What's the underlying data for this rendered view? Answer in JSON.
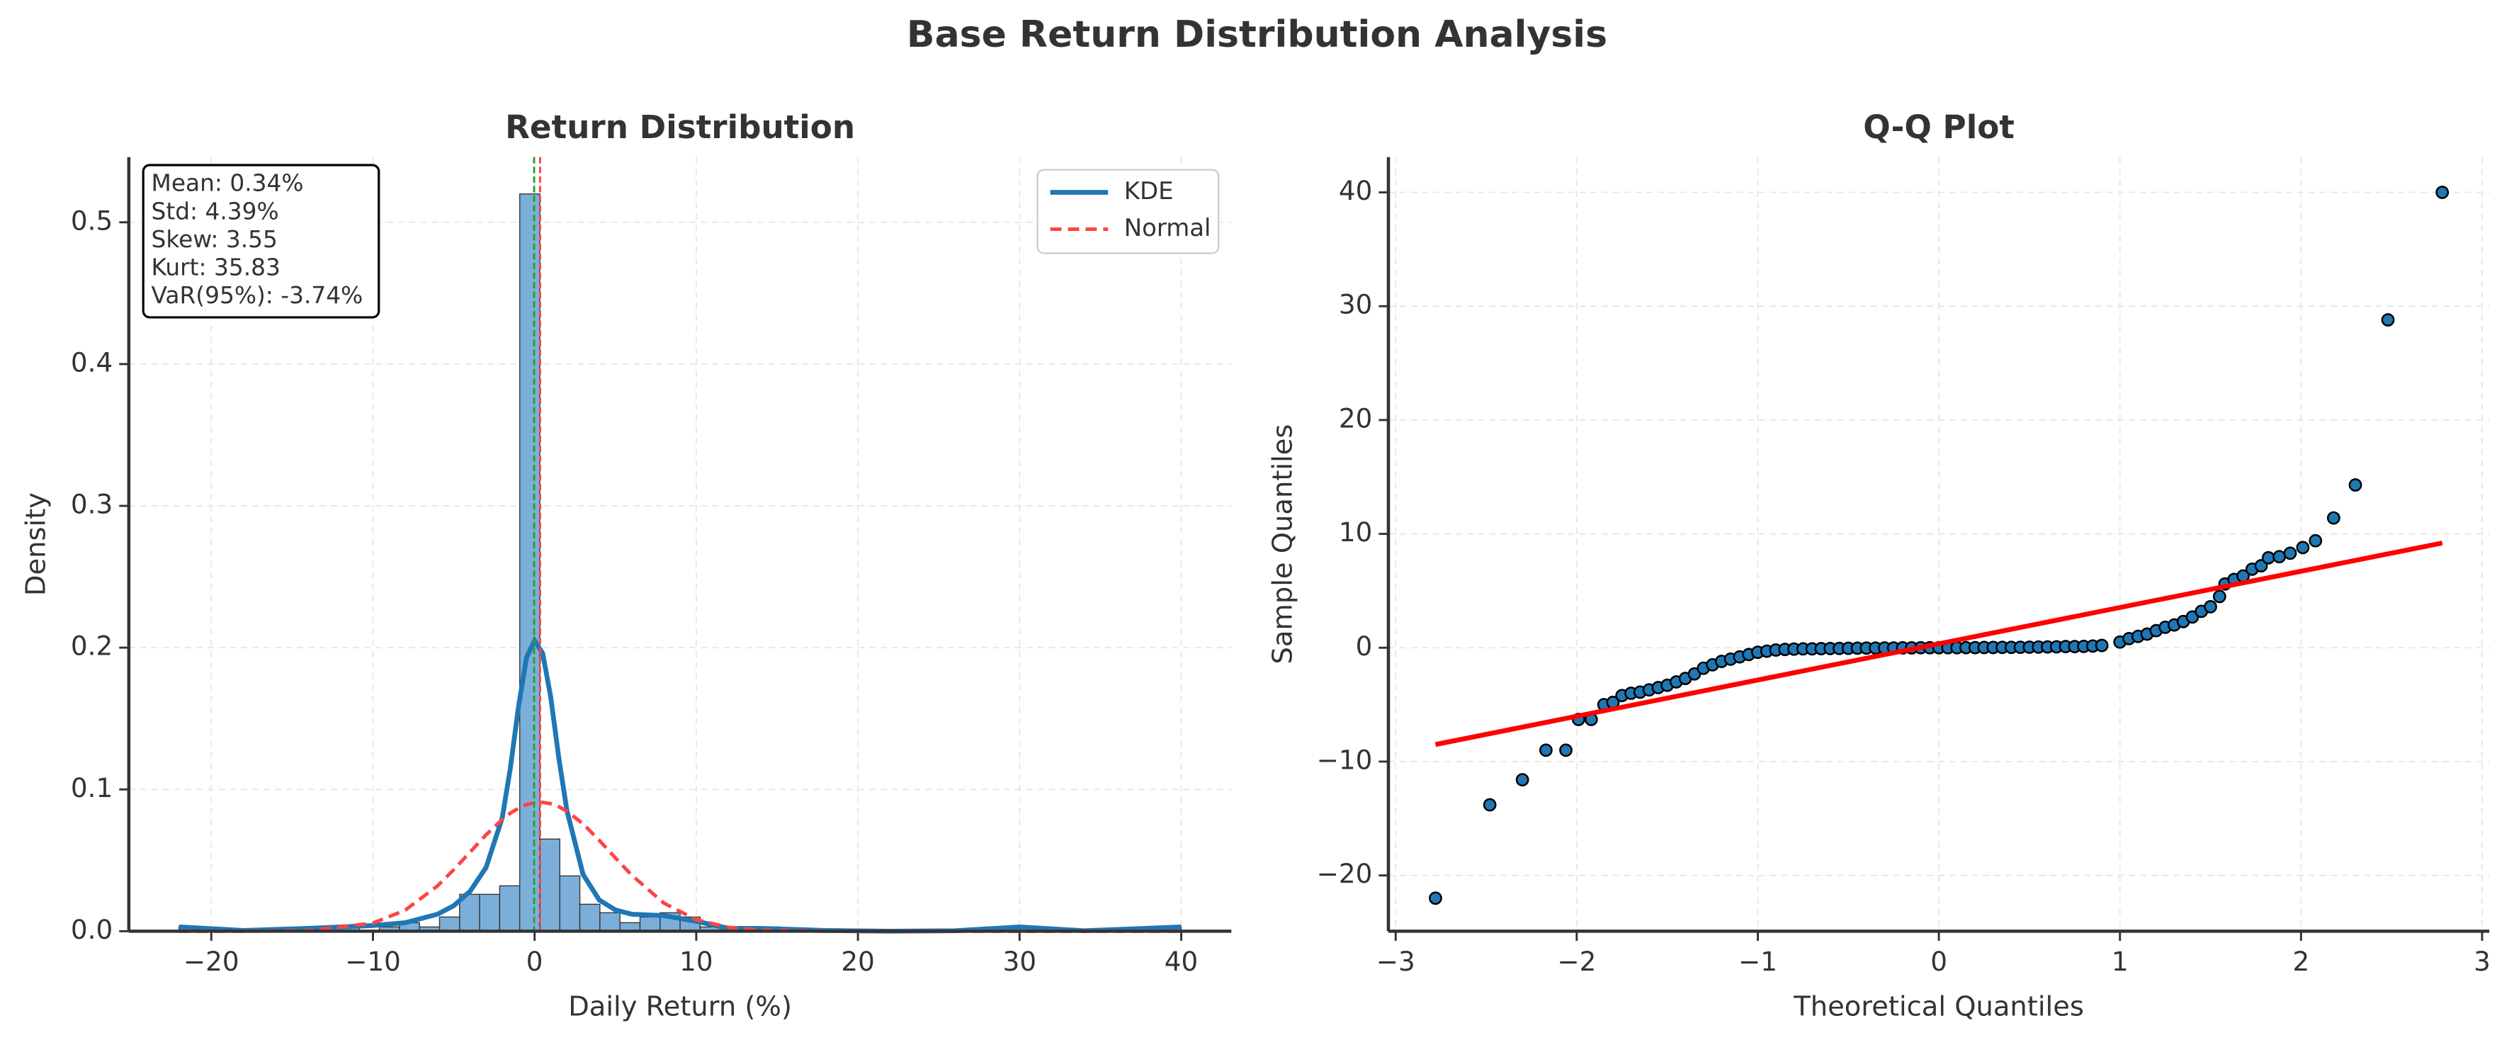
{
  "title": "Base Return Distribution Analysis",
  "chart_data": [
    {
      "type": "histogram",
      "title": "Return Distribution",
      "xlabel": "Daily Return (%)",
      "ylabel": "Density",
      "bins": [
        -22,
        -20.76,
        -19.52,
        -18.28,
        -17.04,
        -15.8,
        -14.56,
        -13.32,
        -12.08,
        -10.84,
        -9.6,
        -8.36,
        -7.12,
        -5.88,
        -4.64,
        -3.4,
        -2.16,
        -0.92,
        0.32,
        1.56,
        2.8,
        4.04,
        5.28,
        6.52,
        7.76,
        9.0,
        10.24,
        11.48,
        12.72,
        13.96,
        15.2,
        16.44,
        17.68,
        18.92,
        20.16,
        21.4,
        22.64,
        23.88,
        25.12,
        26.36,
        27.6,
        28.84,
        30.08,
        31.32,
        32.56,
        33.8,
        35.04,
        36.28,
        37.52,
        38.76,
        40.0
      ],
      "values": [
        0.003,
        0,
        0,
        0,
        0,
        0,
        0.003,
        0,
        0.003,
        0,
        0.003,
        0.006,
        0.003,
        0.01,
        0.026,
        0.026,
        0.032,
        0.52,
        0.065,
        0.039,
        0.019,
        0.013,
        0.006,
        0.01,
        0.013,
        0.01,
        0.003,
        0.003,
        0,
        0.003,
        0,
        0,
        0,
        0,
        0,
        0,
        0,
        0,
        0,
        0,
        0,
        0.003,
        0,
        0,
        0,
        0,
        0,
        0,
        0,
        0.003
      ],
      "color": "#7bafd9",
      "edgecolor": "#333333",
      "lines": {
        "x": [
          -22,
          -18,
          -14,
          -10,
          -8,
          -6,
          -5,
          -4,
          -3,
          -2,
          -1.5,
          -1,
          -0.5,
          0,
          0.5,
          1,
          1.5,
          2,
          3,
          4,
          5,
          6,
          8,
          10,
          12,
          14,
          18,
          22,
          26,
          30,
          34,
          40
        ],
        "series": [
          {
            "name": "KDE",
            "color": "#1f77b4",
            "dashed": false,
            "values": [
              0.003,
              0.0005,
              0.002,
              0.004,
              0.006,
              0.012,
              0.018,
              0.028,
              0.045,
              0.08,
              0.115,
              0.158,
              0.193,
              0.205,
              0.196,
              0.165,
              0.122,
              0.085,
              0.04,
              0.022,
              0.015,
              0.012,
              0.011,
              0.007,
              0.002,
              0.002,
              0.0005,
              0,
              0.0003,
              0.003,
              0.0003,
              0.003
            ]
          },
          {
            "name": "Normal",
            "color": "#ff4444",
            "dashed": true,
            "values": [
              0,
              0,
              0.0004,
              0.0057,
              0.0149,
              0.032,
              0.0434,
              0.0557,
              0.068,
              0.0788,
              0.0833,
              0.0867,
              0.0893,
              0.0906,
              0.0909,
              0.0899,
              0.0878,
              0.0846,
              0.0757,
              0.0641,
              0.0517,
              0.0396,
              0.0198,
              0.0081,
              0.0027,
              0.0007,
              0,
              0,
              0,
              0,
              0,
              0
            ]
          }
        ]
      },
      "reference_lines": [
        {
          "value": 0.34,
          "color": "#ff4444"
        },
        {
          "value": -0.03,
          "color": "#2ca02c"
        }
      ],
      "annotation": [
        "Mean: 0.34%",
        "Std: 4.39%",
        "Skew: 3.55",
        "Kurt: 35.83",
        "VaR(95%): -3.74%"
      ],
      "legend": "upper right",
      "grid": true,
      "xlim": [
        -25.1,
        43.1
      ],
      "xticks": [
        {
          "value": -20,
          "label": "−20"
        },
        {
          "value": -10,
          "label": "−10"
        },
        0,
        10,
        20,
        30,
        40
      ],
      "ylim": [
        0,
        0.546
      ],
      "yticks": [
        {
          "value": 0,
          "label": "0.0"
        },
        0.1,
        0.2,
        0.3,
        0.4,
        0.5
      ]
    },
    {
      "type": "scatter",
      "title": "Q-Q Plot",
      "xlabel": "Theoretical Quantiles",
      "ylabel": "Sample Quantiles",
      "x": [
        -2.78,
        -2.48,
        -2.3,
        -2.17,
        -2.06,
        -1.99,
        -1.92,
        -1.85,
        -1.8,
        -1.75,
        -1.7,
        -1.65,
        -1.6,
        -1.55,
        -1.5,
        -1.45,
        -1.4,
        -1.35,
        -1.3,
        -1.25,
        -1.2,
        -1.15,
        -1.1,
        -1.05,
        -1.0,
        -0.95,
        -0.9,
        -0.85,
        -0.8,
        -0.75,
        -0.7,
        -0.65,
        -0.6,
        -0.55,
        -0.5,
        -0.45,
        -0.4,
        -0.35,
        -0.3,
        -0.25,
        -0.2,
        -0.15,
        -0.1,
        -0.05,
        0,
        0.05,
        0.1,
        0.15,
        0.2,
        0.25,
        0.3,
        0.35,
        0.4,
        0.45,
        0.5,
        0.55,
        0.6,
        0.65,
        0.7,
        0.75,
        0.8,
        0.85,
        0.9,
        1.0,
        1.05,
        1.1,
        1.15,
        1.2,
        1.25,
        1.3,
        1.35,
        1.4,
        1.45,
        1.5,
        1.55,
        1.58,
        1.63,
        1.68,
        1.73,
        1.78,
        1.82,
        1.88,
        1.94,
        2.01,
        2.08,
        2.18,
        2.3,
        2.48,
        2.78
      ],
      "values": [
        -22,
        -13.8,
        -11.6,
        -9,
        -9,
        -6.3,
        -6.3,
        -5,
        -4.8,
        -4.2,
        -4,
        -3.9,
        -3.7,
        -3.5,
        -3.3,
        -3,
        -2.7,
        -2.3,
        -1.8,
        -1.5,
        -1.2,
        -1,
        -0.8,
        -0.6,
        -0.4,
        -0.3,
        -0.2,
        -0.15,
        -0.12,
        -0.1,
        -0.1,
        -0.08,
        -0.07,
        -0.06,
        -0.05,
        -0.04,
        -0.03,
        -0.03,
        -0.02,
        -0.02,
        -0.01,
        -0.01,
        0,
        0,
        0,
        0,
        0,
        0.01,
        0.01,
        0.02,
        0.02,
        0.03,
        0.03,
        0.04,
        0.05,
        0.06,
        0.07,
        0.08,
        0.1,
        0.1,
        0.12,
        0.15,
        0.2,
        0.5,
        0.8,
        1,
        1.2,
        1.5,
        1.8,
        2,
        2.3,
        2.7,
        3.2,
        3.6,
        4.5,
        5.6,
        6,
        6.3,
        6.9,
        7.2,
        7.9,
        8,
        8.3,
        8.8,
        9.4,
        11.4,
        14.3,
        28.8,
        40
      ],
      "color": "#1f77b4",
      "edgecolor": "#000000",
      "fit_line": {
        "x": [
          -2.78,
          2.78
        ],
        "values": [
          -8.5,
          9.2
        ],
        "color": "#ff0000"
      },
      "grid": true,
      "xlim": [
        -3.04,
        3.04
      ],
      "xticks": [
        {
          "value": -3,
          "label": "−3"
        },
        {
          "value": -2,
          "label": "−2"
        },
        {
          "value": -1,
          "label": "−1"
        },
        0,
        1,
        2,
        3
      ],
      "ylim": [
        -24.9,
        43.1
      ],
      "yticks": [
        {
          "value": -20,
          "label": "−20"
        },
        {
          "value": -10,
          "label": "−10"
        },
        0,
        10,
        20,
        30,
        40
      ]
    }
  ]
}
